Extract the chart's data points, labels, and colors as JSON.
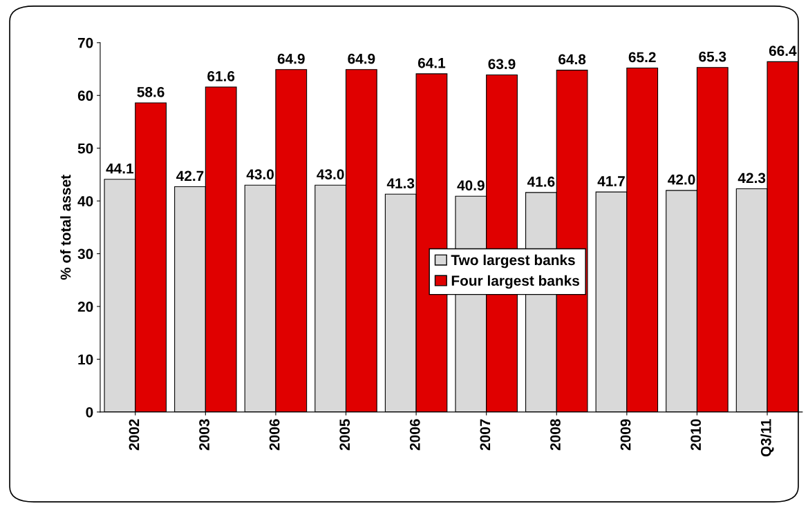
{
  "chart_data": {
    "type": "bar",
    "ylabel": "% of total asset",
    "categories": [
      "2002",
      "2003",
      "2006",
      "2005",
      "2006",
      "2007",
      "2008",
      "2009",
      "2010",
      "Q3/11"
    ],
    "series": [
      {
        "name": "Two largest banks",
        "color": "#d9d9d9",
        "values": [
          44.1,
          42.7,
          43.0,
          43.0,
          41.3,
          40.9,
          41.6,
          41.7,
          42.0,
          42.3
        ],
        "value_labels": [
          "44.1",
          "42.7",
          "43.0",
          "43.0",
          "41.3",
          "40.9",
          "41.6",
          "41.7",
          "42.0",
          "42.3"
        ]
      },
      {
        "name": "Four largest banks",
        "color": "#e00000",
        "values": [
          58.6,
          61.6,
          64.9,
          64.9,
          64.1,
          63.9,
          64.8,
          65.2,
          65.3,
          66.4
        ],
        "value_labels": [
          "58.6",
          "61.6",
          "64.9",
          "64.9",
          "64.1",
          "63.9",
          "64.8",
          "65.2",
          "65.3",
          "66.4"
        ]
      }
    ],
    "ylim": [
      0,
      70
    ],
    "yticks": [
      0,
      10,
      20,
      30,
      40,
      50,
      60,
      70
    ],
    "grid": false,
    "legend": "center"
  }
}
